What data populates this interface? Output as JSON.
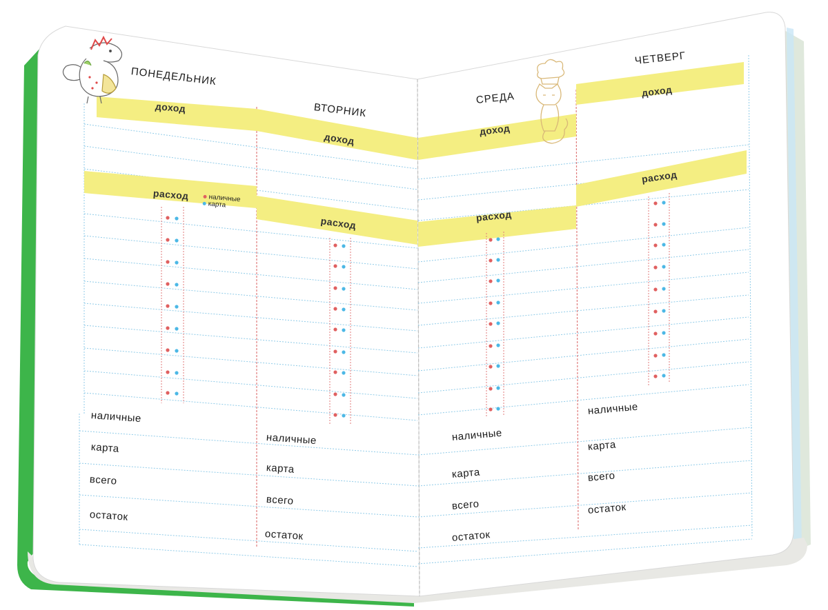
{
  "left_page": {
    "days": {
      "monday": "понедельник",
      "tuesday": "вторник"
    },
    "income_label": "доход",
    "expense_label": "расход",
    "legend": {
      "cash": "наличные",
      "card": "карта"
    },
    "summary": [
      "наличные",
      "карта",
      "всего",
      "остаток"
    ]
  },
  "right_page": {
    "days": {
      "wednesday": "среда",
      "thursday": "четверг"
    },
    "income_label": "доход",
    "expense_label": "расход",
    "summary": [
      "наличные",
      "карта",
      "всего",
      "остаток"
    ]
  },
  "colors": {
    "band": "#f4ee82",
    "rule": "#8fcbe8",
    "divider": "#e07a7a",
    "dot_cash": "#e06060",
    "dot_card": "#4cb8e6",
    "cover": "#3db54a"
  },
  "illustrations": [
    "dinosaur-doodle",
    "cat-chef-doodle"
  ]
}
